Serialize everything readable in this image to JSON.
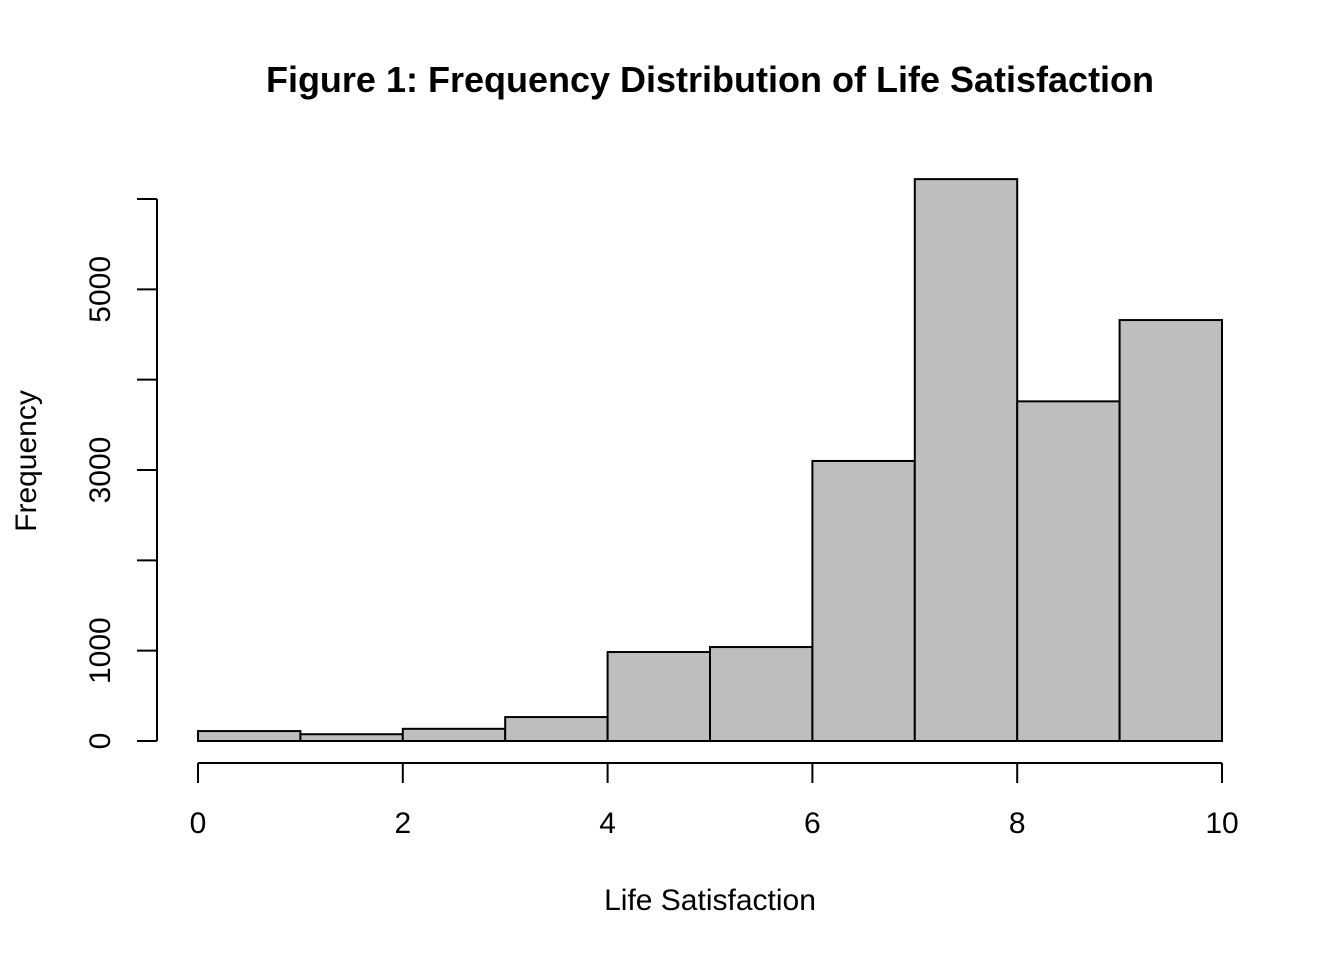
{
  "chart_data": {
    "type": "bar",
    "title": "Figure 1: Frequency Distribution of Life Satisfaction",
    "xlabel": "Life Satisfaction",
    "ylabel": "Frequency",
    "bins": [
      {
        "from": 0,
        "to": 1,
        "value": 110
      },
      {
        "from": 1,
        "to": 2,
        "value": 75
      },
      {
        "from": 2,
        "to": 3,
        "value": 135
      },
      {
        "from": 3,
        "to": 4,
        "value": 265
      },
      {
        "from": 4,
        "to": 5,
        "value": 985
      },
      {
        "from": 5,
        "to": 6,
        "value": 1040
      },
      {
        "from": 6,
        "to": 7,
        "value": 3100
      },
      {
        "from": 7,
        "to": 8,
        "value": 6220
      },
      {
        "from": 8,
        "to": 9,
        "value": 3760
      },
      {
        "from": 9,
        "to": 10,
        "value": 4660
      }
    ],
    "xlim": [
      0,
      10
    ],
    "ylim": [
      0,
      6000
    ],
    "x_ticks": [
      0,
      2,
      4,
      6,
      8,
      10
    ],
    "x_tick_labels": [
      "0",
      "2",
      "4",
      "6",
      "8",
      "10"
    ],
    "y_ticks": [
      0,
      1000,
      2000,
      3000,
      4000,
      5000,
      6000
    ],
    "y_tick_labels": [
      "0",
      "1000",
      "",
      "3000",
      "",
      "5000",
      ""
    ],
    "colors": {
      "bar_fill": "#bebebe",
      "bar_stroke": "#000000"
    },
    "grid": false
  }
}
